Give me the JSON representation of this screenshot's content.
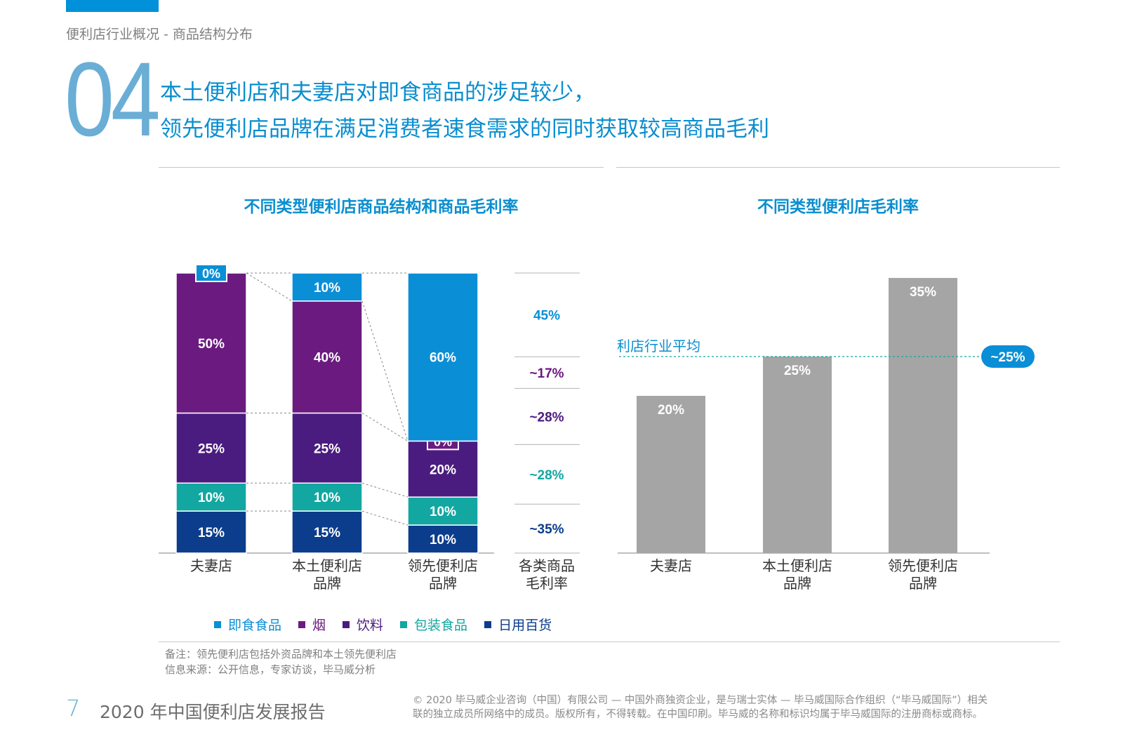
{
  "breadcrumb": "便利店行业概况 - 商品结构分布",
  "section_number": "04",
  "headline": {
    "line1": "本土便利店和夫妻店对即食商品的涉足较少，",
    "line2": "领先便利店品牌在满足消费者速食需求的同时获取较高商品毛利"
  },
  "colors": {
    "accent": "#0a8ecf",
    "ready_food": "#0a8fd6",
    "tobacco": "#6b1a80",
    "beverage": "#4a1c7f",
    "packaged_food": "#12a7a1",
    "daily_goods": "#0b3d8c",
    "bar_gray": "#a5a5a5"
  },
  "legend": {
    "items": [
      {
        "label": "即食食品",
        "color": "#0a8fd6"
      },
      {
        "label": "烟",
        "color": "#6b1a80"
      },
      {
        "label": "饮料",
        "color": "#4a1c7f"
      },
      {
        "label": "包装食品",
        "color": "#12a7a1"
      },
      {
        "label": "日用百货",
        "color": "#0b3d8c"
      }
    ]
  },
  "chart_data": [
    {
      "type": "bar",
      "stacked": true,
      "title": "不同类型便利店商品结构和商品毛利率",
      "categories": [
        "夫妻店",
        "本土便利店品牌",
        "领先便利店品牌"
      ],
      "category_lines": [
        [
          "夫妻店"
        ],
        [
          "本土便利店",
          "品牌"
        ],
        [
          "领先便利店",
          "品牌"
        ]
      ],
      "value_unit": "%",
      "series": [
        {
          "name": "日用百货",
          "values": [
            15,
            15,
            10
          ],
          "color": "#0b3d8c"
        },
        {
          "name": "包装食品",
          "values": [
            10,
            10,
            10
          ],
          "color": "#12a7a1"
        },
        {
          "name": "饮料",
          "values": [
            25,
            25,
            20
          ],
          "color": "#4a1c7f"
        },
        {
          "name": "烟",
          "values": [
            50,
            40,
            0
          ],
          "color": "#6b1a80"
        },
        {
          "name": "即食食品",
          "values": [
            0,
            10,
            60
          ],
          "color": "#0a8fd6"
        }
      ],
      "margin_column": {
        "label_lines": [
          "各类商品",
          "毛利率"
        ],
        "rates": [
          {
            "category": "即食食品",
            "label": "45%",
            "color": "#0a8fd6"
          },
          {
            "category": "烟",
            "label": "~17%",
            "color": "#6b1a80"
          },
          {
            "category": "饮料",
            "label": "~28%",
            "color": "#4a1c7f"
          },
          {
            "category": "包装食品",
            "label": "~28%",
            "color": "#12a7a1"
          },
          {
            "category": "日用百货",
            "label": "~35%",
            "color": "#0b3d8c"
          }
        ]
      },
      "ylim": [
        0,
        100
      ]
    },
    {
      "type": "bar",
      "title": "不同类型便利店毛利率",
      "categories": [
        "夫妻店",
        "本土便利店品牌",
        "领先便利店品牌"
      ],
      "category_lines": [
        [
          "夫妻店"
        ],
        [
          "本土便利店",
          "品牌"
        ],
        [
          "领先便利店",
          "品牌"
        ]
      ],
      "values": [
        20,
        25,
        35
      ],
      "value_unit": "%",
      "ylim": [
        0,
        35
      ],
      "reference_line": {
        "label": "便利店行业平均",
        "value": 25,
        "badge": "~25%"
      }
    }
  ],
  "notes": {
    "line1": "备注：领先便利店包括外资品牌和本土领先便利店",
    "line2": "信息来源：公开信息，专家访谈，毕马威分析"
  },
  "footer": {
    "page_number": "7",
    "report_title": "2020 年中国便利店发展报告",
    "copyright_line1": "© 2020 毕马威企业咨询（中国）有限公司 — 中国外商独资企业，是与瑞士实体 — 毕马威国际合作组织（“毕马威国际”）相关",
    "copyright_line2": "联的独立成员所网络中的成员。版权所有，不得转载。在中国印刷。毕马威的名称和标识均属于毕马威国际的注册商标或商标。"
  }
}
